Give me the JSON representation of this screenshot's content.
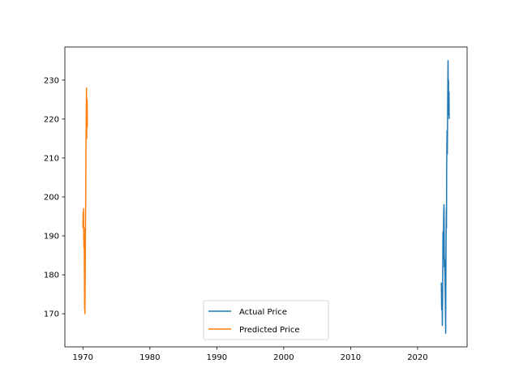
{
  "chart_data": {
    "type": "line",
    "title": "",
    "xlabel": "",
    "ylabel": "",
    "xlim": [
      1967.3,
      2027.4
    ],
    "ylim": [
      161.5,
      238.5
    ],
    "grid": false,
    "legend_placement": "lower center",
    "x_ticks": [
      1970,
      1980,
      1990,
      2000,
      2010,
      2020
    ],
    "y_ticks": [
      170,
      180,
      190,
      200,
      210,
      220,
      230
    ],
    "series": [
      {
        "name": "Actual Price",
        "color": "#1f77b4",
        "points": [
          [
            2023.55,
            178
          ],
          [
            2023.6,
            171
          ],
          [
            2023.65,
            176
          ],
          [
            2023.7,
            167
          ],
          [
            2023.75,
            177
          ],
          [
            2023.8,
            191
          ],
          [
            2023.85,
            184
          ],
          [
            2023.9,
            195
          ],
          [
            2023.95,
            198
          ],
          [
            2024.0,
            182
          ],
          [
            2024.05,
            184
          ],
          [
            2024.1,
            179
          ],
          [
            2024.15,
            173
          ],
          [
            2024.2,
            165
          ],
          [
            2024.22,
            176
          ],
          [
            2024.25,
            188
          ],
          [
            2024.3,
            197
          ],
          [
            2024.32,
            192
          ],
          [
            2024.35,
            208
          ],
          [
            2024.4,
            217
          ],
          [
            2024.45,
            211
          ],
          [
            2024.5,
            224
          ],
          [
            2024.55,
            235
          ],
          [
            2024.58,
            226
          ],
          [
            2024.62,
            230
          ],
          [
            2024.65,
            221
          ],
          [
            2024.7,
            227
          ],
          [
            2024.72,
            220
          ]
        ]
      },
      {
        "name": "Predicted Price",
        "color": "#ff7f0e",
        "points": [
          [
            1970.0,
            192
          ],
          [
            1970.03,
            196
          ],
          [
            1970.06,
            194
          ],
          [
            1970.09,
            197
          ],
          [
            1970.12,
            190
          ],
          [
            1970.15,
            187
          ],
          [
            1970.18,
            192
          ],
          [
            1970.2,
            186
          ],
          [
            1970.22,
            180
          ],
          [
            1970.25,
            171
          ],
          [
            1970.28,
            175
          ],
          [
            1970.3,
            170
          ],
          [
            1970.33,
            178
          ],
          [
            1970.36,
            186
          ],
          [
            1970.4,
            196
          ],
          [
            1970.43,
            205
          ],
          [
            1970.46,
            214
          ],
          [
            1970.5,
            222
          ],
          [
            1970.53,
            228
          ],
          [
            1970.56,
            215
          ],
          [
            1970.6,
            220
          ],
          [
            1970.63,
            225
          ],
          [
            1970.66,
            218
          ]
        ]
      }
    ]
  }
}
